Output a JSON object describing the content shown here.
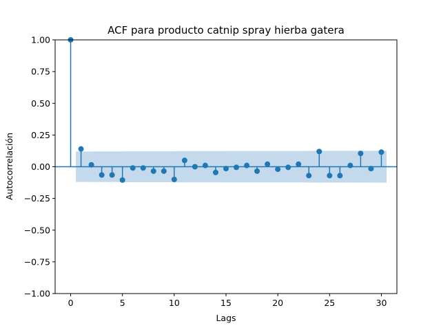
{
  "chart_data": {
    "type": "scatter",
    "title": "ACF para producto catnip spray hierba gatera",
    "xlabel": "Lags",
    "ylabel": "Autocorrelación",
    "xlim": [
      -1.5,
      31.5
    ],
    "ylim": [
      -1.0,
      1.0
    ],
    "xticks": [
      0,
      5,
      10,
      15,
      20,
      25,
      30
    ],
    "yticks": [
      -1.0,
      -0.75,
      -0.5,
      -0.25,
      0.0,
      0.25,
      0.5,
      0.75,
      1.0
    ],
    "xtick_labels": [
      "0",
      "5",
      "10",
      "15",
      "20",
      "25",
      "30"
    ],
    "ytick_labels": [
      "−1.00",
      "−0.75",
      "−0.50",
      "−0.25",
      "0.00",
      "0.25",
      "0.50",
      "0.75",
      "1.00"
    ],
    "grid": false,
    "colors": {
      "marker": "#1f77b4",
      "confidence_band": "#c4daec",
      "zero_line": "#1f77b4"
    },
    "lags": [
      0,
      1,
      2,
      3,
      4,
      5,
      6,
      7,
      8,
      9,
      10,
      11,
      12,
      13,
      14,
      15,
      16,
      17,
      18,
      19,
      20,
      21,
      22,
      23,
      24,
      25,
      26,
      27,
      28,
      29,
      30
    ],
    "values": [
      1.0,
      0.14,
      0.015,
      -0.065,
      -0.065,
      -0.105,
      -0.01,
      -0.01,
      -0.035,
      -0.035,
      -0.1,
      0.05,
      0.0,
      0.01,
      -0.045,
      -0.015,
      -0.005,
      0.01,
      -0.035,
      0.02,
      -0.02,
      -0.005,
      0.02,
      -0.07,
      0.12,
      -0.07,
      -0.07,
      0.01,
      0.105,
      -0.015,
      0.115
    ],
    "confidence_upper": [
      0.12,
      0.12,
      0.121,
      0.121,
      0.121,
      0.122,
      0.122,
      0.122,
      0.122,
      0.122,
      0.123,
      0.123,
      0.123,
      0.123,
      0.123,
      0.124,
      0.124,
      0.124,
      0.124,
      0.124,
      0.124,
      0.124,
      0.124,
      0.125,
      0.125,
      0.125,
      0.125,
      0.125,
      0.125,
      0.126
    ]
  }
}
